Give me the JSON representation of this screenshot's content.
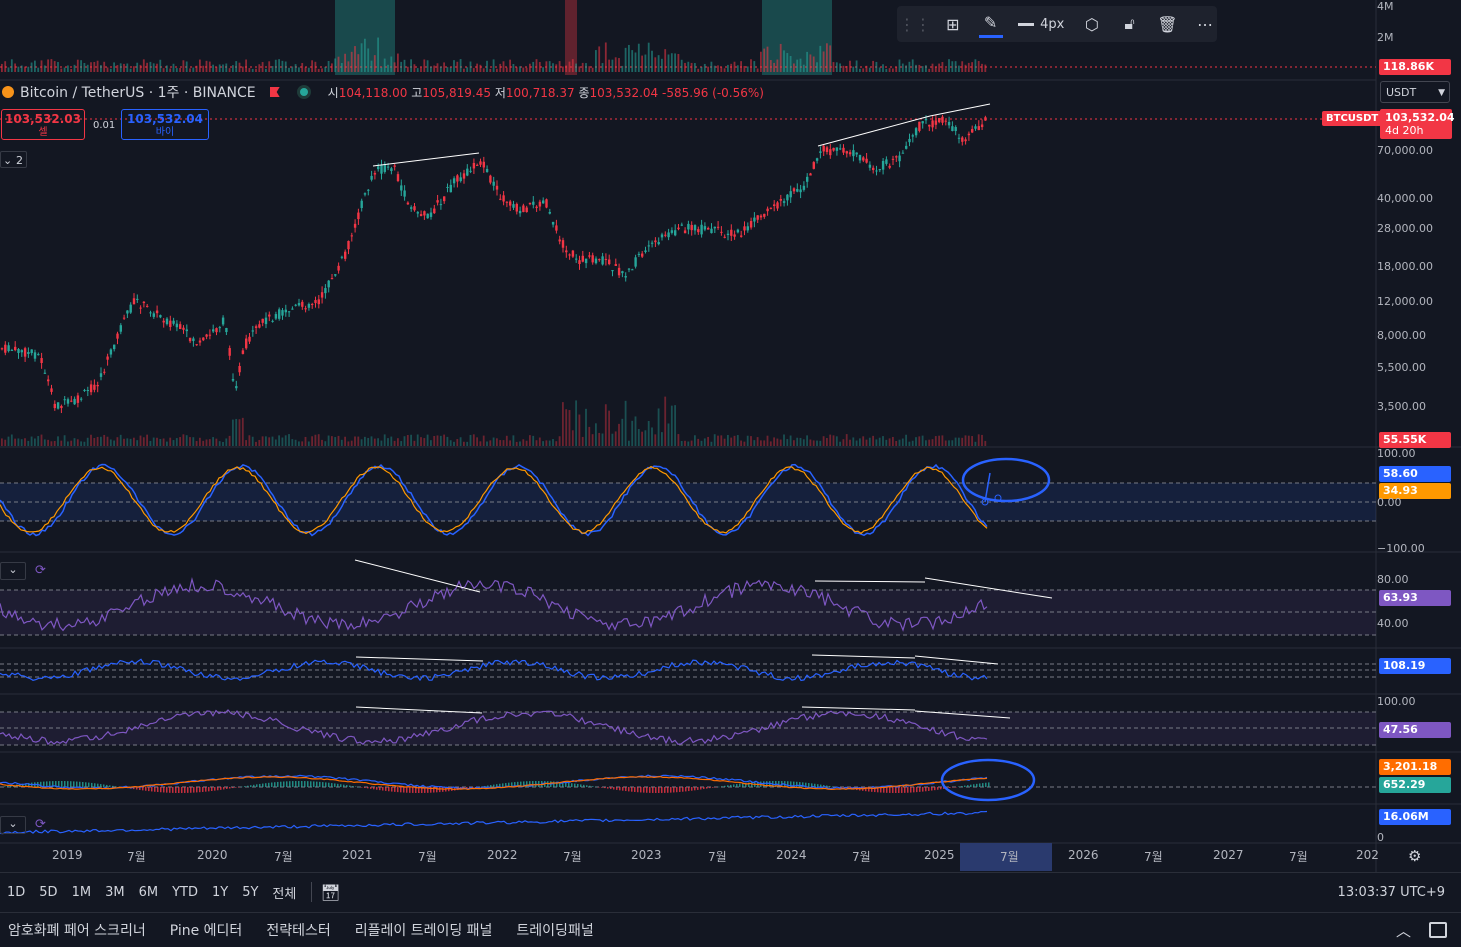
{
  "symbol": {
    "name": "Bitcoin / TetherUS · 1주 · BINANCE",
    "open_label": "시",
    "open": "104,118.00",
    "high_label": "고",
    "high": "105,819.45",
    "low_label": "저",
    "low": "100,718.37",
    "close_label": "종",
    "close": "103,532.04",
    "change": "-585.96 (-0.56%)"
  },
  "trade": {
    "sell_price": "103,532.03",
    "sell_label": "셀",
    "spread": "0.01",
    "buy_price": "103,532.04",
    "buy_label": "바이"
  },
  "indicator_count": "2",
  "currency_select": "USDT",
  "drawing_toolbar": {
    "width_label": "4px"
  },
  "price_axis": {
    "volume_top": [
      "4M",
      "2M"
    ],
    "volume_top_tag": "118.86K",
    "ticker_tag": "BTCUSDT",
    "last_price": "103,532.04",
    "countdown": "4d 20h",
    "levels": [
      "70,000.00",
      "40,000.00",
      "28,000.00",
      "18,000.00",
      "12,000.00",
      "8,000.00",
      "5,500.00",
      "3,500.00"
    ],
    "volume_tag": "55.55K"
  },
  "osc1": {
    "top": "100.00",
    "mid": "0.00",
    "bottom": "−100.00",
    "val_a": "58.60",
    "val_b": "34.93"
  },
  "rsi": {
    "top": "80.00",
    "bottom": "40.00",
    "value": "63.93"
  },
  "osc3": {
    "value": "108.19"
  },
  "osc4": {
    "top": "100.00",
    "value": "47.56"
  },
  "macd": {
    "val_a": "3,201.18",
    "val_b": "652.29"
  },
  "obv": {
    "value": "16.06M",
    "zero": "0"
  },
  "time_axis": [
    "2019",
    "7월",
    "2020",
    "7월",
    "2021",
    "7월",
    "2022",
    "7월",
    "2023",
    "7월",
    "2024",
    "7월",
    "2025",
    "7월",
    "2026",
    "7월",
    "2027",
    "7월",
    "202"
  ],
  "ranges": [
    "1D",
    "5D",
    "1M",
    "3M",
    "6M",
    "YTD",
    "1Y",
    "5Y",
    "전체"
  ],
  "clock": "13:03:37 UTC+9",
  "panels": [
    "암호화폐 페어 스크리너",
    "Pine 에디터",
    "전략테스터",
    "리플레이 트레이딩 패널",
    "트레이딩패널"
  ],
  "colors": {
    "up": "#26a69a",
    "down": "#f23645",
    "accent": "#2962ff",
    "rsi": "#7e57c2",
    "orange": "#ff9800"
  }
}
